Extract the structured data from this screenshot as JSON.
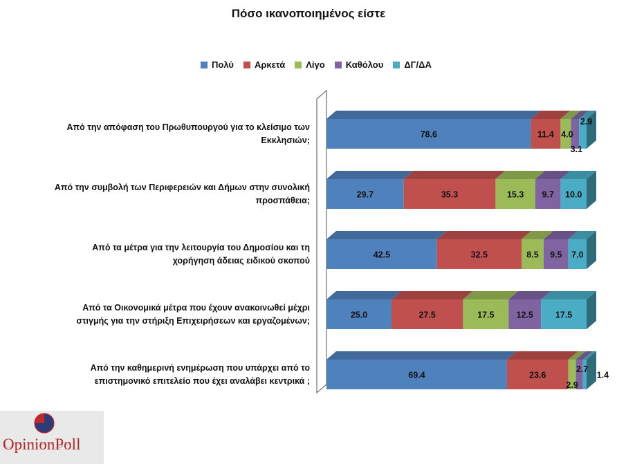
{
  "chart_data": {
    "type": "bar",
    "orientation": "horizontal",
    "stacked": true,
    "title": "Πόσο ικανοποιημένος είστε",
    "legend_position": "top",
    "categories": [
      "Από την απόφαση του Πρωθυπουργού για το κλείσιμο των Εκκλησιών;",
      "Από την συμβολή των Περιφερειών και Δήμων στην συνολική προσπάθεια;",
      "Από τα μέτρα για την λειτουργία του Δημοσίου και τη χορήγηση άδειας ειδικού σκοπού",
      "Από τα Οικονομικά μέτρα που έχουν ανακοινωθεί μέχρι στιγμής για την στήριξη Επιχειρήσεων και εργαζομένων;",
      "Από την καθημερινή ενημέρωση που υπάρχει από το επιστημονικό επιτελείο που έχει αναλάβει κεντρικά ;"
    ],
    "category_lines": [
      [
        "Από την απόφαση του Πρωθυπουργού για το κλείσιμο των",
        "Εκκλησιών;"
      ],
      [
        "Από την συμβολή των Περιφερειών  και Δήμων στην συνολική",
        "προσπάθεια;"
      ],
      [
        "Από τα μέτρα για την λειτουργία του Δημοσίου και τη",
        "χορήγηση άδειας ειδικού σκοπού"
      ],
      [
        "Από τα Οικονομικά μέτρα που έχουν ανακοινωθεί μέχρι",
        "στιγμής για την στήριξη Επιχειρήσεων και εργαζομένων;"
      ],
      [
        "Από την καθημερινή ενημέρωση που υπάρχει από το",
        "επιστημονικό επιτελείο που έχει αναλάβει κεντρικά ;"
      ]
    ],
    "series": [
      {
        "name": "Πολύ",
        "color": "#4f81bd",
        "values": [
          78.6,
          29.7,
          42.5,
          25.0,
          69.4
        ]
      },
      {
        "name": "Αρκετά",
        "color": "#c0504d",
        "values": [
          11.4,
          35.3,
          32.5,
          27.5,
          23.6
        ]
      },
      {
        "name": "Λίγο",
        "color": "#9bbb59",
        "values": [
          4.0,
          15.3,
          8.5,
          17.5,
          2.9
        ]
      },
      {
        "name": "Καθόλου",
        "color": "#8064a2",
        "values": [
          3.1,
          9.7,
          9.5,
          12.5,
          2.7
        ]
      },
      {
        "name": "ΔΓ/ΔΑ",
        "color": "#4bacc6",
        "values": [
          2.9,
          10.0,
          7.0,
          17.5,
          1.4
        ]
      }
    ],
    "value_labels": [
      [
        "78.6",
        "11.4",
        "4.0",
        "3.1",
        "2.9"
      ],
      [
        "29.7",
        "35.3",
        "15.3",
        "9.7",
        "10.0"
      ],
      [
        "42.5",
        "32.5",
        "8.5",
        "9.5",
        "7.0"
      ],
      [
        "25.0",
        "27.5",
        "17.5",
        "12.5",
        "17.5"
      ],
      [
        "69.4",
        "23.6",
        "2.9",
        "2.7",
        "1.4"
      ]
    ],
    "xlim": [
      0,
      100
    ]
  },
  "logo": {
    "text": "OpinionPoll"
  }
}
